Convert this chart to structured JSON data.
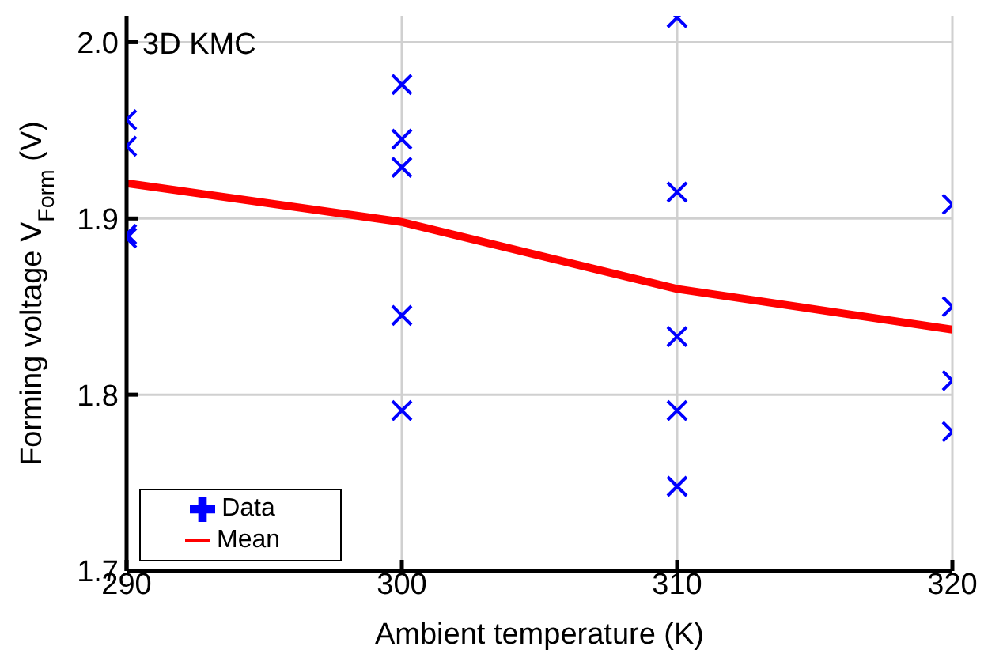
{
  "chart_data": {
    "type": "scatter",
    "xlabel": "Ambient temperature (K)",
    "ylabel": "Forming voltage V$_{Form}$ (V)",
    "annotations": [
      "3D KMC"
    ],
    "series": [
      {
        "name": "Data",
        "color": "#0000ff",
        "marker": "cross",
        "x": [
          290,
          290,
          290,
          290,
          300,
          300,
          300,
          300,
          300,
          310,
          310,
          310,
          310,
          310,
          320,
          320,
          320,
          320
        ],
        "values": [
          1.956,
          1.941,
          1.891,
          1.889,
          1.976,
          1.945,
          1.929,
          1.845,
          1.791,
          2.014,
          1.915,
          1.833,
          1.791,
          1.748,
          1.908,
          1.85,
          1.808,
          1.779
        ]
      },
      {
        "name": "Mean",
        "type": "line",
        "color": "#ff0000",
        "marker": "none",
        "x": [
          290,
          300,
          310,
          320
        ],
        "values": [
          1.92,
          1.898,
          1.86,
          1.837
        ]
      }
    ],
    "xlim": [
      290,
      320
    ],
    "xticks": [
      290,
      300,
      310,
      320
    ],
    "ylim": [
      1.7,
      2.015
    ],
    "yticks": [
      {
        "value": 1.7,
        "label": "1.7"
      },
      {
        "value": 1.8,
        "label": "1.8"
      },
      {
        "value": 1.9,
        "label": "1.9"
      },
      {
        "value": 2,
        "label": "2.0"
      }
    ],
    "grid": true,
    "legend": "bottom left"
  }
}
